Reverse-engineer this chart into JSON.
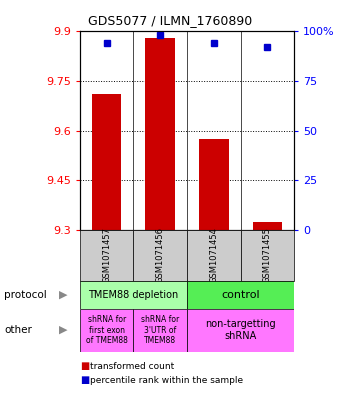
{
  "title": "GDS5077 / ILMN_1760890",
  "samples": [
    "GSM1071457",
    "GSM1071456",
    "GSM1071454",
    "GSM1071455"
  ],
  "transformed_counts": [
    9.71,
    9.88,
    9.575,
    9.325
  ],
  "percentile_ranks": [
    94,
    98,
    94,
    92
  ],
  "y_min": 9.3,
  "y_max": 9.9,
  "y_ticks": [
    9.3,
    9.45,
    9.6,
    9.75,
    9.9
  ],
  "y_ticks_right": [
    0,
    25,
    50,
    75,
    100
  ],
  "bar_color": "#cc0000",
  "dot_color": "#0000cc",
  "bar_bottom": 9.3,
  "protocol_labels": [
    "TMEM88 depletion",
    "control"
  ],
  "protocol_color_depletion": "#aaffaa",
  "protocol_color_control": "#55ee55",
  "other_labels": [
    "shRNA for\nfirst exon\nof TMEM88",
    "shRNA for\n3'UTR of\nTMEM88",
    "non-targetting\nshRNA"
  ],
  "other_color": "#ff77ff",
  "sample_box_color": "#cccccc",
  "legend_red_label": "transformed count",
  "legend_blue_label": "percentile rank within the sample"
}
